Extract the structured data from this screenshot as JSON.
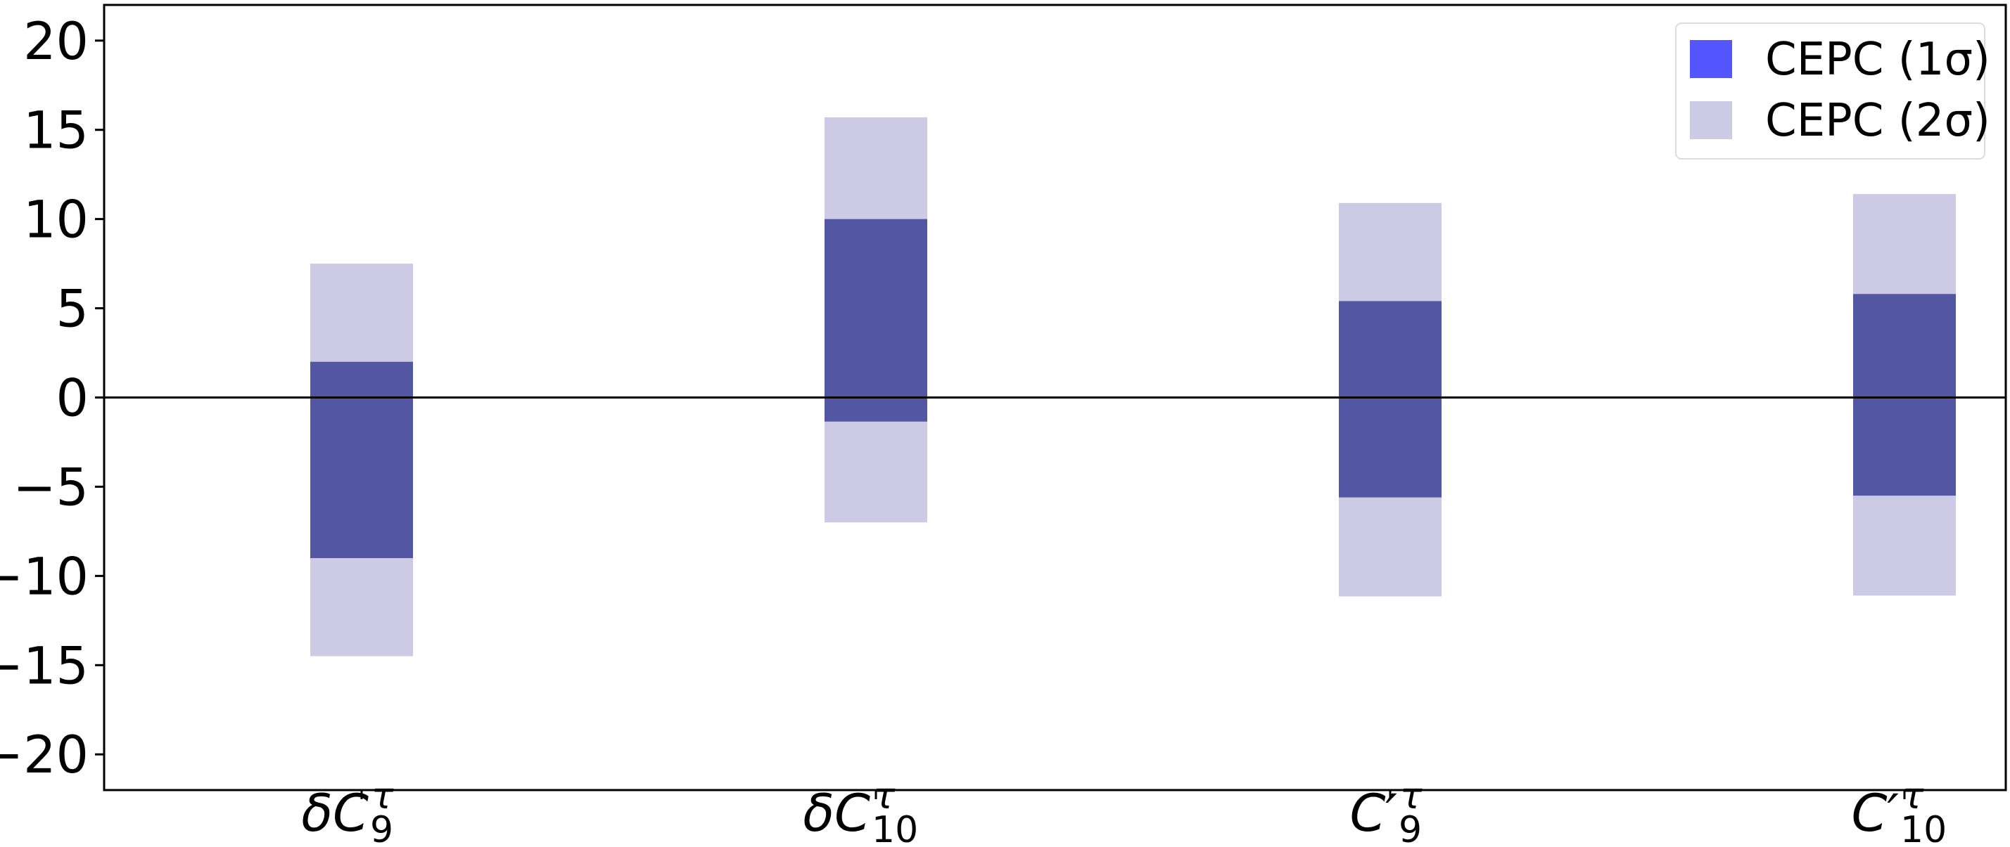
{
  "chart_data": {
    "type": "range_bar",
    "categories": [
      {
        "base": "δC",
        "sub": "9",
        "sup": "τ"
      },
      {
        "base": "δC",
        "sub": "10",
        "sup": "τ"
      },
      {
        "base": "C′",
        "sub": "9",
        "sup": "τ"
      },
      {
        "base": "C′",
        "sub": "10",
        "sup": "τ"
      }
    ],
    "series": [
      {
        "name": "CEPC (2σ)",
        "color": "#cccae4",
        "legend_color": "#cccae4",
        "low": [
          -14.5,
          -7.0,
          -11.15,
          -11.1
        ],
        "high": [
          7.5,
          15.7,
          10.9,
          11.4
        ]
      },
      {
        "name": "CEPC (1σ)",
        "color": "#5357a3",
        "legend_color": "#5555ff",
        "low": [
          -9.0,
          -1.35,
          -5.6,
          -5.5
        ],
        "high": [
          2.0,
          10.0,
          5.4,
          5.8
        ]
      }
    ],
    "legend_order": [
      1,
      0
    ],
    "legend_position": "upper right",
    "hline": 0,
    "ylim": [
      -22,
      22
    ],
    "yticks": [
      {
        "value": -20,
        "label": "−20"
      },
      {
        "value": -15,
        "label": "−15"
      },
      {
        "value": -10,
        "label": "−10"
      },
      {
        "value": -5,
        "label": "−5"
      },
      0,
      5,
      10,
      15,
      20
    ]
  }
}
